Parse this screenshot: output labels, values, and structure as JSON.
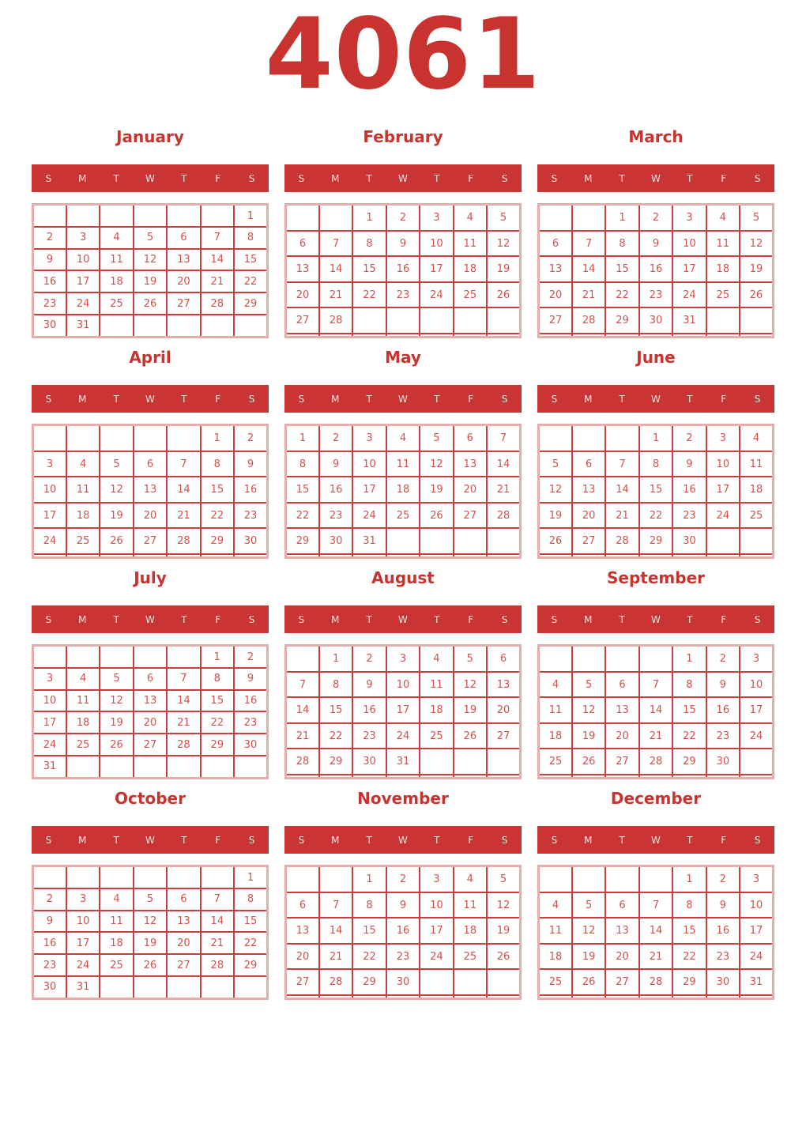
{
  "page_title": "4061",
  "weekday_headers": [
    "S",
    "M",
    "T",
    "W",
    "T",
    "F",
    "S"
  ],
  "colors": {
    "title_red": "#c8332f",
    "header_bar_red": "#ca3434",
    "weekday_text": "#f6e8e6",
    "day_number_red": "#d2514d",
    "grid_inner_line": "#ca3f3c",
    "grid_outer_line": "#e6aeab",
    "background": "#ffffff"
  },
  "months": [
    {
      "name": "January",
      "weeks": [
        [
          "",
          "",
          "",
          "",
          "",
          "",
          "1"
        ],
        [
          "2",
          "3",
          "4",
          "5",
          "6",
          "7",
          "8"
        ],
        [
          "9",
          "10",
          "11",
          "12",
          "13",
          "14",
          "15"
        ],
        [
          "16",
          "17",
          "18",
          "19",
          "20",
          "21",
          "22"
        ],
        [
          "23",
          "24",
          "25",
          "26",
          "27",
          "28",
          "29"
        ],
        [
          "30",
          "31",
          "",
          "",
          "",
          "",
          ""
        ]
      ]
    },
    {
      "name": "February",
      "weeks": [
        [
          "",
          "",
          "1",
          "2",
          "3",
          "4",
          "5"
        ],
        [
          "6",
          "7",
          "8",
          "9",
          "10",
          "11",
          "12"
        ],
        [
          "13",
          "14",
          "15",
          "16",
          "17",
          "18",
          "19"
        ],
        [
          "20",
          "21",
          "22",
          "23",
          "24",
          "25",
          "26"
        ],
        [
          "27",
          "28",
          "",
          "",
          "",
          "",
          ""
        ],
        [
          "",
          "",
          "",
          "",
          "",
          "",
          ""
        ]
      ]
    },
    {
      "name": "March",
      "weeks": [
        [
          "",
          "",
          "1",
          "2",
          "3",
          "4",
          "5"
        ],
        [
          "6",
          "7",
          "8",
          "9",
          "10",
          "11",
          "12"
        ],
        [
          "13",
          "14",
          "15",
          "16",
          "17",
          "18",
          "19"
        ],
        [
          "20",
          "21",
          "22",
          "23",
          "24",
          "25",
          "26"
        ],
        [
          "27",
          "28",
          "29",
          "30",
          "31",
          "",
          ""
        ],
        [
          "",
          "",
          "",
          "",
          "",
          "",
          ""
        ]
      ]
    },
    {
      "name": "April",
      "weeks": [
        [
          "",
          "",
          "",
          "",
          "",
          "1",
          "2"
        ],
        [
          "3",
          "4",
          "5",
          "6",
          "7",
          "8",
          "9"
        ],
        [
          "10",
          "11",
          "12",
          "13",
          "14",
          "15",
          "16"
        ],
        [
          "17",
          "18",
          "19",
          "20",
          "21",
          "22",
          "23"
        ],
        [
          "24",
          "25",
          "26",
          "27",
          "28",
          "29",
          "30"
        ],
        [
          "",
          "",
          "",
          "",
          "",
          "",
          ""
        ]
      ]
    },
    {
      "name": "May",
      "weeks": [
        [
          "1",
          "2",
          "3",
          "4",
          "5",
          "6",
          "7"
        ],
        [
          "8",
          "9",
          "10",
          "11",
          "12",
          "13",
          "14"
        ],
        [
          "15",
          "16",
          "17",
          "18",
          "19",
          "20",
          "21"
        ],
        [
          "22",
          "23",
          "24",
          "25",
          "26",
          "27",
          "28"
        ],
        [
          "29",
          "30",
          "31",
          "",
          "",
          "",
          ""
        ],
        [
          "",
          "",
          "",
          "",
          "",
          "",
          ""
        ]
      ]
    },
    {
      "name": "June",
      "weeks": [
        [
          "",
          "",
          "",
          "1",
          "2",
          "3",
          "4"
        ],
        [
          "5",
          "6",
          "7",
          "8",
          "9",
          "10",
          "11"
        ],
        [
          "12",
          "13",
          "14",
          "15",
          "16",
          "17",
          "18"
        ],
        [
          "19",
          "20",
          "21",
          "22",
          "23",
          "24",
          "25"
        ],
        [
          "26",
          "27",
          "28",
          "29",
          "30",
          "",
          ""
        ],
        [
          "",
          "",
          "",
          "",
          "",
          "",
          ""
        ]
      ]
    },
    {
      "name": "July",
      "weeks": [
        [
          "",
          "",
          "",
          "",
          "",
          "1",
          "2"
        ],
        [
          "3",
          "4",
          "5",
          "6",
          "7",
          "8",
          "9"
        ],
        [
          "10",
          "11",
          "12",
          "13",
          "14",
          "15",
          "16"
        ],
        [
          "17",
          "18",
          "19",
          "20",
          "21",
          "22",
          "23"
        ],
        [
          "24",
          "25",
          "26",
          "27",
          "28",
          "29",
          "30"
        ],
        [
          "31",
          "",
          "",
          "",
          "",
          "",
          ""
        ]
      ]
    },
    {
      "name": "August",
      "weeks": [
        [
          "",
          "1",
          "2",
          "3",
          "4",
          "5",
          "6"
        ],
        [
          "7",
          "8",
          "9",
          "10",
          "11",
          "12",
          "13"
        ],
        [
          "14",
          "15",
          "16",
          "17",
          "18",
          "19",
          "20"
        ],
        [
          "21",
          "22",
          "23",
          "24",
          "25",
          "26",
          "27"
        ],
        [
          "28",
          "29",
          "30",
          "31",
          "",
          "",
          ""
        ],
        [
          "",
          "",
          "",
          "",
          "",
          "",
          ""
        ]
      ]
    },
    {
      "name": "September",
      "weeks": [
        [
          "",
          "",
          "",
          "",
          "1",
          "2",
          "3"
        ],
        [
          "4",
          "5",
          "6",
          "7",
          "8",
          "9",
          "10"
        ],
        [
          "11",
          "12",
          "13",
          "14",
          "15",
          "16",
          "17"
        ],
        [
          "18",
          "19",
          "20",
          "21",
          "22",
          "23",
          "24"
        ],
        [
          "25",
          "26",
          "27",
          "28",
          "29",
          "30",
          ""
        ],
        [
          "",
          "",
          "",
          "",
          "",
          "",
          ""
        ]
      ]
    },
    {
      "name": "October",
      "weeks": [
        [
          "",
          "",
          "",
          "",
          "",
          "",
          "1"
        ],
        [
          "2",
          "3",
          "4",
          "5",
          "6",
          "7",
          "8"
        ],
        [
          "9",
          "10",
          "11",
          "12",
          "13",
          "14",
          "15"
        ],
        [
          "16",
          "17",
          "18",
          "19",
          "20",
          "21",
          "22"
        ],
        [
          "23",
          "24",
          "25",
          "26",
          "27",
          "28",
          "29"
        ],
        [
          "30",
          "31",
          "",
          "",
          "",
          "",
          ""
        ]
      ]
    },
    {
      "name": "November",
      "weeks": [
        [
          "",
          "",
          "1",
          "2",
          "3",
          "4",
          "5"
        ],
        [
          "6",
          "7",
          "8",
          "9",
          "10",
          "11",
          "12"
        ],
        [
          "13",
          "14",
          "15",
          "16",
          "17",
          "18",
          "19"
        ],
        [
          "20",
          "21",
          "22",
          "23",
          "24",
          "25",
          "26"
        ],
        [
          "27",
          "28",
          "29",
          "30",
          "",
          "",
          ""
        ],
        [
          "",
          "",
          "",
          "",
          "",
          "",
          ""
        ]
      ]
    },
    {
      "name": "December",
      "weeks": [
        [
          "",
          "",
          "",
          "",
          "1",
          "2",
          "3"
        ],
        [
          "4",
          "5",
          "6",
          "7",
          "8",
          "9",
          "10"
        ],
        [
          "11",
          "12",
          "13",
          "14",
          "15",
          "16",
          "17"
        ],
        [
          "18",
          "19",
          "20",
          "21",
          "22",
          "23",
          "24"
        ],
        [
          "25",
          "26",
          "27",
          "28",
          "29",
          "30",
          "31"
        ],
        [
          "",
          "",
          "",
          "",
          "",
          "",
          ""
        ]
      ]
    }
  ]
}
